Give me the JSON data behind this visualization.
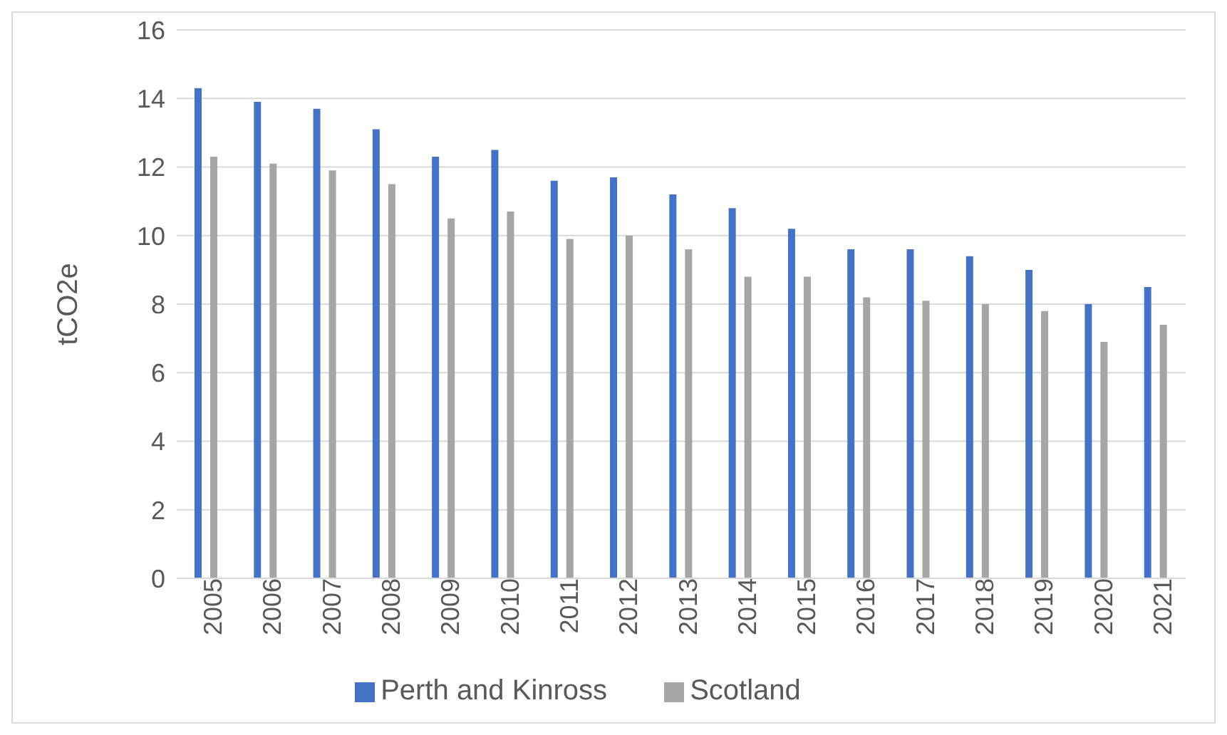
{
  "chart_data": {
    "type": "bar",
    "ylabel": "tCO2e",
    "categories": [
      "2005",
      "2006",
      "2007",
      "2008",
      "2009",
      "2010",
      "2011",
      "2012",
      "2013",
      "2014",
      "2015",
      "2016",
      "2017",
      "2018",
      "2019",
      "2020",
      "2021"
    ],
    "series": [
      {
        "name": "Perth and Kinross",
        "color": "#4472c4",
        "values": [
          14.3,
          13.9,
          13.7,
          13.1,
          12.3,
          12.5,
          11.6,
          11.7,
          11.2,
          10.8,
          10.2,
          9.6,
          9.6,
          9.4,
          9.0,
          8.0,
          8.5
        ]
      },
      {
        "name": "Scotland",
        "color": "#a5a5a5",
        "values": [
          12.3,
          12.1,
          11.9,
          11.5,
          10.5,
          10.7,
          9.9,
          10.0,
          9.6,
          8.8,
          8.8,
          8.2,
          8.1,
          8.0,
          7.8,
          6.9,
          7.4
        ]
      }
    ],
    "ylim": [
      0,
      16
    ],
    "yticks": [
      0,
      2,
      4,
      6,
      8,
      10,
      12,
      14,
      16
    ],
    "grid": "y",
    "legend": "bottom"
  }
}
